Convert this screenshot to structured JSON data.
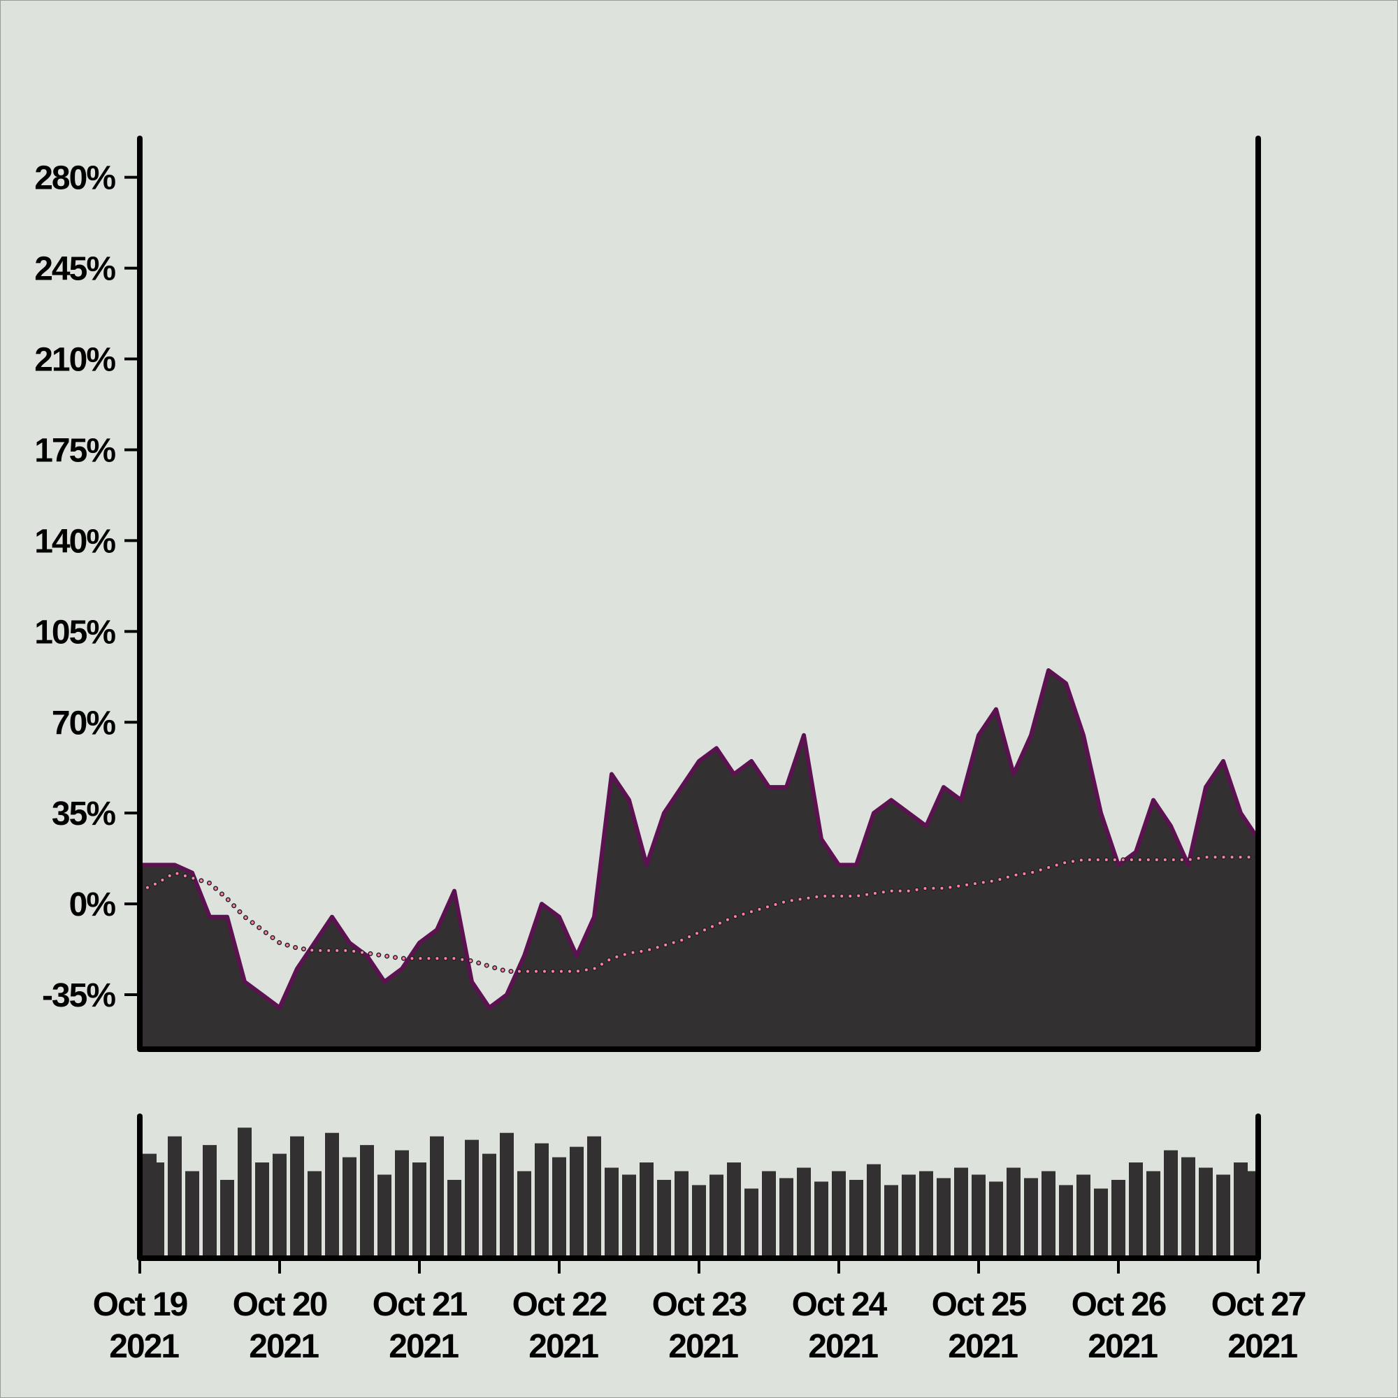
{
  "chart_data": {
    "type": "area",
    "x": [
      0,
      0.125,
      0.25,
      0.375,
      0.5,
      0.625,
      0.75,
      0.875,
      1,
      1.125,
      1.25,
      1.375,
      1.5,
      1.625,
      1.75,
      1.875,
      2,
      2.125,
      2.25,
      2.375,
      2.5,
      2.625,
      2.75,
      2.875,
      3,
      3.125,
      3.25,
      3.375,
      3.5,
      3.625,
      3.75,
      3.875,
      4,
      4.125,
      4.25,
      4.375,
      4.5,
      4.625,
      4.75,
      4.875,
      5,
      5.125,
      5.25,
      5.375,
      5.5,
      5.625,
      5.75,
      5.875,
      6,
      6.125,
      6.25,
      6.375,
      6.5,
      6.625,
      6.75,
      6.875,
      7,
      7.125,
      7.25,
      7.375,
      7.5,
      7.625,
      7.75,
      7.875,
      8
    ],
    "values": [
      15,
      15,
      15,
      12,
      -5,
      -5,
      -30,
      -35,
      -40,
      -25,
      -15,
      -5,
      -15,
      -20,
      -30,
      -25,
      -15,
      -10,
      5,
      -30,
      -40,
      -35,
      -20,
      0,
      -5,
      -20,
      -5,
      50,
      40,
      15,
      35,
      45,
      55,
      60,
      50,
      55,
      45,
      45,
      65,
      25,
      15,
      15,
      35,
      40,
      35,
      30,
      45,
      40,
      65,
      75,
      50,
      65,
      90,
      85,
      65,
      35,
      15,
      20,
      40,
      30,
      15,
      45,
      55,
      35,
      25
    ],
    "color": "#323031",
    "line_color": "#5c1150",
    "moving_average": {
      "color": "#ff7eb0",
      "values": [
        5,
        8,
        12,
        10,
        8,
        2,
        -5,
        -10,
        -15,
        -17,
        -18,
        -18,
        -18,
        -19,
        -20,
        -21,
        -21,
        -21,
        -21,
        -22,
        -24,
        -26,
        -26,
        -26,
        -26,
        -26,
        -25,
        -21,
        -19,
        -18,
        -16,
        -14,
        -11,
        -8,
        -5,
        -3,
        -1,
        1,
        2,
        3,
        3,
        3,
        4,
        5,
        5,
        6,
        6,
        7,
        8,
        9,
        11,
        12,
        14,
        16,
        17,
        17,
        17,
        17,
        17,
        17,
        17,
        18,
        18,
        18,
        18
      ]
    },
    "volume": {
      "color": "#323031",
      "values": [
        60,
        55,
        70,
        50,
        65,
        45,
        75,
        55,
        60,
        70,
        50,
        72,
        58,
        65,
        48,
        62,
        55,
        70,
        45,
        68,
        60,
        72,
        50,
        66,
        58,
        64,
        70,
        52,
        48,
        55,
        45,
        50,
        42,
        48,
        55,
        40,
        50,
        46,
        52,
        44,
        50,
        45,
        54,
        42,
        48,
        50,
        46,
        52,
        48,
        44,
        52,
        46,
        50,
        42,
        48,
        40,
        45,
        55,
        50,
        62,
        58,
        52,
        48,
        55,
        50
      ]
    },
    "ylim": [
      -56,
      295
    ],
    "yticks": [
      {
        "value": -35,
        "label": "-35%"
      },
      {
        "value": 0,
        "label": "0%"
      },
      {
        "value": 35,
        "label": "35%"
      },
      {
        "value": 70,
        "label": "70%"
      },
      {
        "value": 105,
        "label": "105%"
      },
      {
        "value": 140,
        "label": "140%"
      },
      {
        "value": 175,
        "label": "175%"
      },
      {
        "value": 210,
        "label": "210%"
      },
      {
        "value": 245,
        "label": "245%"
      },
      {
        "value": 280,
        "label": "280%"
      }
    ],
    "xlim": [
      0,
      8
    ],
    "xticks": [
      {
        "value": 0,
        "label": "Oct 19 2021"
      },
      {
        "value": 1,
        "label": "Oct 20 2021"
      },
      {
        "value": 2,
        "label": "Oct 21 2021"
      },
      {
        "value": 3,
        "label": "Oct 22 2021"
      },
      {
        "value": 4,
        "label": "Oct 23 2021"
      },
      {
        "value": 5,
        "label": "Oct 24 2021"
      },
      {
        "value": 6,
        "label": "Oct 25 2021"
      },
      {
        "value": 7,
        "label": "Oct 26 2021"
      },
      {
        "value": 8,
        "label": "Oct 27 2021"
      }
    ]
  }
}
